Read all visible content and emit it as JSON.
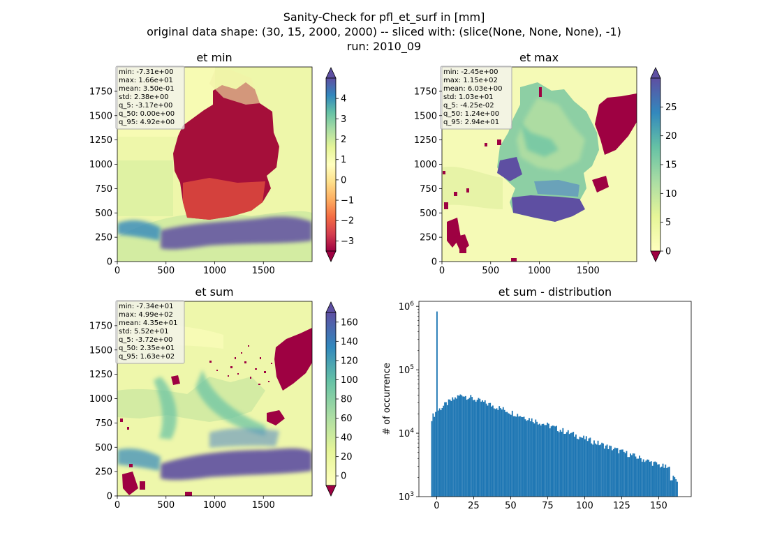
{
  "suptitle": [
    "Sanity-Check for pfl_et_surf in [mm]",
    "original data shape: (30, 15, 2000, 2000) -- sliced with: (slice(None, None, None), -1)",
    "run: 2010_09"
  ],
  "chart_data": [
    {
      "type": "heatmap",
      "title": "et min",
      "colormap": "Spectral",
      "xlim": [
        0,
        2000
      ],
      "ylim": [
        0,
        2000
      ],
      "xticks": [
        0,
        500,
        1000,
        1500
      ],
      "yticks": [
        0,
        250,
        500,
        750,
        1000,
        1250,
        1500,
        1750
      ],
      "colorbar": {
        "range": [
          -3.5,
          5.0
        ],
        "ticks": [
          -3,
          -2,
          -1,
          0,
          1,
          2,
          3,
          4
        ],
        "extend": "both"
      },
      "stats": [
        "min: -7.31e+00",
        "max: 1.66e+01",
        "mean: 3.50e-01",
        "std: 2.38e+00",
        "q_5: -3.17e+00",
        "q_50: 0.00e+00",
        "q_95: 4.92e+00"
      ]
    },
    {
      "type": "heatmap",
      "title": "et max",
      "colormap": "Spectral",
      "xlim": [
        0,
        2000
      ],
      "ylim": [
        0,
        2000
      ],
      "xticks": [
        0,
        500,
        1000,
        1500
      ],
      "yticks": [
        0,
        250,
        500,
        750,
        1000,
        1250,
        1500,
        1750
      ],
      "colorbar": {
        "range": [
          0,
          30
        ],
        "ticks": [
          0,
          5,
          10,
          15,
          20,
          25
        ],
        "extend": "both"
      },
      "stats": [
        "min: -2.45e+00",
        "max: 1.15e+02",
        "mean: 6.03e+00",
        "std: 1.03e+01",
        "q_5: -4.25e-02",
        "q_50: 1.24e+00",
        "q_95: 2.94e+01"
      ]
    },
    {
      "type": "heatmap",
      "title": "et sum",
      "colormap": "Spectral",
      "xlim": [
        0,
        2000
      ],
      "ylim": [
        0,
        2000
      ],
      "xticks": [
        0,
        500,
        1000,
        1500
      ],
      "yticks": [
        0,
        250,
        500,
        750,
        1000,
        1250,
        1500,
        1750
      ],
      "colorbar": {
        "range": [
          -10,
          170
        ],
        "ticks": [
          0,
          20,
          40,
          60,
          80,
          100,
          120,
          140,
          160
        ],
        "extend": "both"
      },
      "stats": [
        "min: -7.34e+01",
        "max: 4.99e+02",
        "mean: 4.35e+01",
        "std: 5.52e+01",
        "q_5: -3.72e+00",
        "q_50: 2.35e+01",
        "q_95: 1.63e+02"
      ]
    },
    {
      "type": "bar",
      "title": "et sum - distribution",
      "ylabel": "# of occurrence",
      "yscale": "log",
      "ylim": [
        1000,
        1200000
      ],
      "xlim": [
        -12,
        172
      ],
      "xticks": [
        0,
        25,
        50,
        75,
        100,
        125,
        150
      ],
      "yticks": [
        1000,
        10000,
        100000,
        1000000
      ],
      "color": "#1f77b4",
      "bin_range": [
        -3.72,
        163
      ],
      "bin_count": 190,
      "spike": {
        "x": 0,
        "y": 830000
      }
    }
  ]
}
